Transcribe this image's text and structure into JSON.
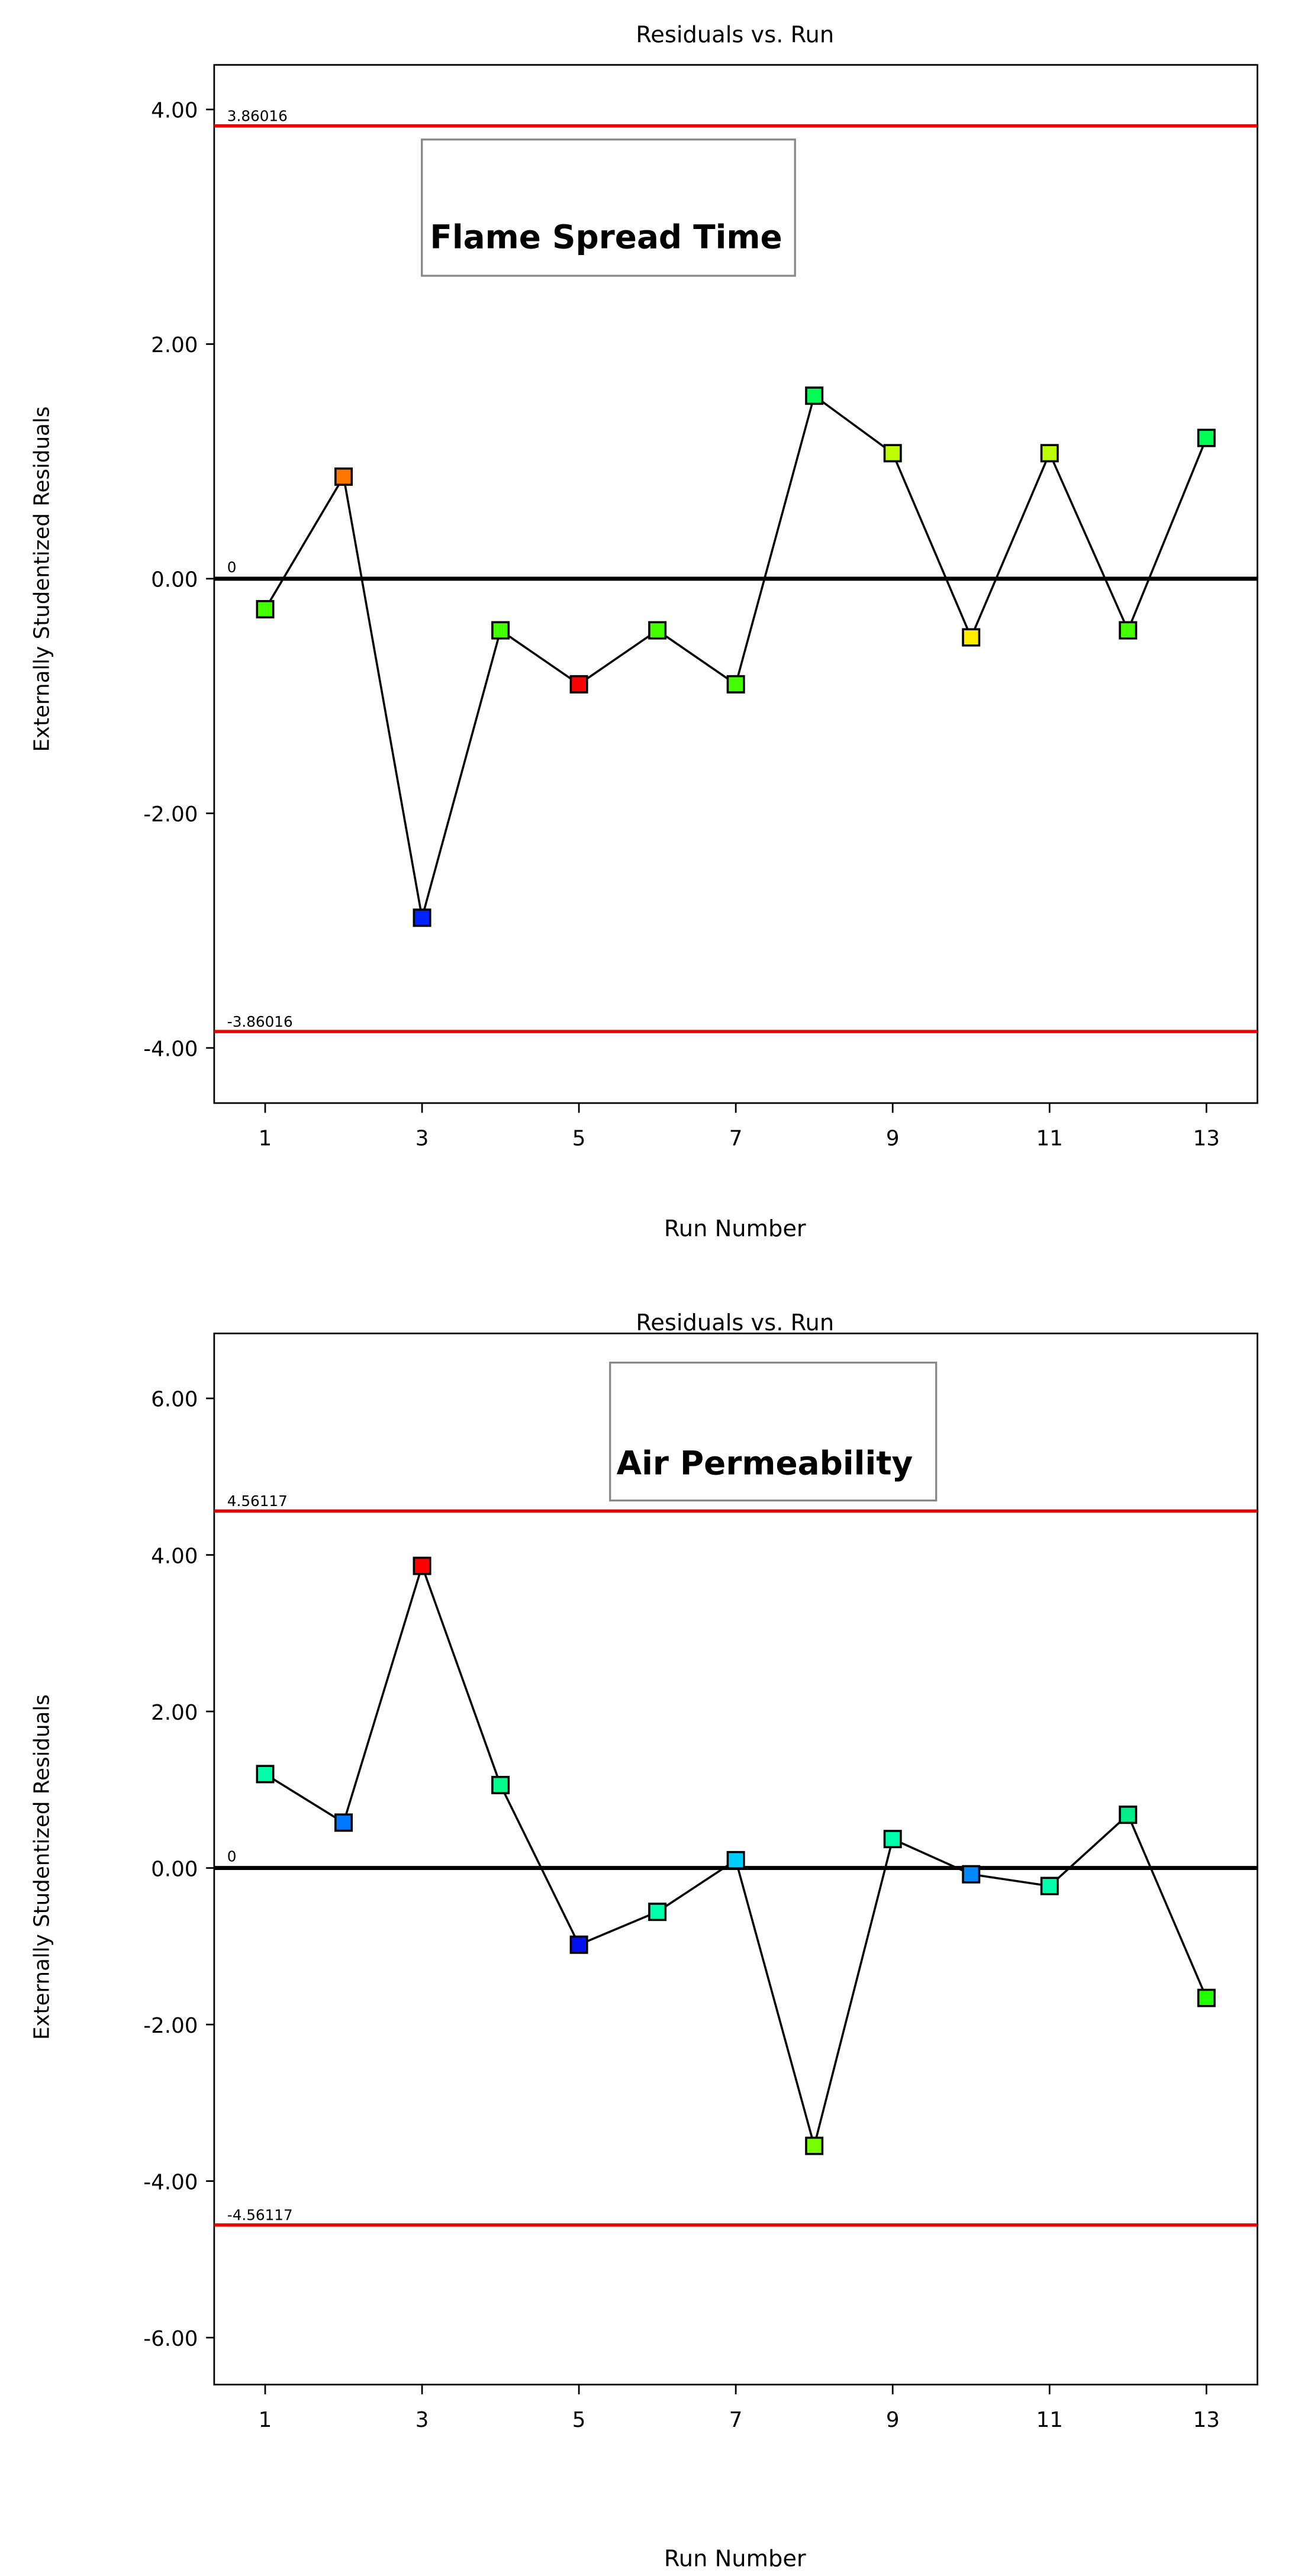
{
  "chart_data": [
    {
      "type": "line",
      "title": "Residuals vs. Run",
      "xlabel": "Run Number",
      "ylabel": "Externally Studentized Residuals",
      "annotation": "Flame Spread Time",
      "x": [
        1,
        2,
        3,
        4,
        5,
        6,
        7,
        8,
        9,
        10,
        11,
        12,
        13
      ],
      "values": [
        -0.26,
        0.87,
        -2.89,
        -0.44,
        -0.9,
        -0.44,
        -0.9,
        1.56,
        1.07,
        -0.5,
        1.07,
        -0.44,
        1.2
      ],
      "colors": [
        "#44ff00",
        "#ff7700",
        "#0022ff",
        "#44ff00",
        "#ff0000",
        "#44ff00",
        "#44ff00",
        "#00ff55",
        "#bbff00",
        "#ffee00",
        "#bbff00",
        "#44ff00",
        "#00ff55"
      ],
      "xticks": [
        "1",
        "3",
        "5",
        "7",
        "9",
        "11",
        "13"
      ],
      "yticks": [
        4,
        2,
        0,
        -2,
        -4
      ],
      "ytick_labels": [
        "4.00",
        "2.00",
        "0.00",
        "-2.00",
        "-4.00"
      ],
      "ylim": [
        -4.47,
        4.38
      ],
      "xlim": [
        0.35,
        13.65
      ],
      "limit_upper": 3.86016,
      "limit_lower": -3.86016,
      "limit_upper_label": "3.86016",
      "limit_lower_label": "-3.86016",
      "zero_label": "0"
    },
    {
      "type": "line",
      "title": "Residuals vs. Run",
      "xlabel": "Run Number",
      "ylabel": "Externally Studentized Residuals",
      "annotation": "Air Permeability",
      "x": [
        1,
        2,
        3,
        4,
        5,
        6,
        7,
        8,
        9,
        10,
        11,
        12,
        13
      ],
      "values": [
        1.2,
        0.58,
        3.86,
        1.06,
        -0.98,
        -0.56,
        0.1,
        -3.55,
        0.37,
        -0.08,
        -0.23,
        0.68,
        -1.66
      ],
      "colors": [
        "#00ffaa",
        "#0077ff",
        "#ff0000",
        "#00ff88",
        "#0011ee",
        "#00ffaa",
        "#00ccff",
        "#77ff00",
        "#00ffaa",
        "#0088ff",
        "#00ffaa",
        "#00ee88",
        "#22ff00"
      ],
      "xticks": [
        "1",
        "3",
        "5",
        "7",
        "9",
        "11",
        "13"
      ],
      "yticks": [
        6,
        4,
        2,
        0,
        -2,
        -4,
        -6
      ],
      "ytick_labels": [
        "6.00",
        "4.00",
        "2.00",
        "0.00",
        "-2.00",
        "-4.00",
        "-6.00"
      ],
      "ylim": [
        -6.6,
        6.83
      ],
      "xlim": [
        0.35,
        13.65
      ],
      "limit_upper": 4.56117,
      "limit_lower": -4.56117,
      "limit_upper_label": "4.56117",
      "limit_lower_label": "-4.56117",
      "zero_label": "0"
    }
  ]
}
